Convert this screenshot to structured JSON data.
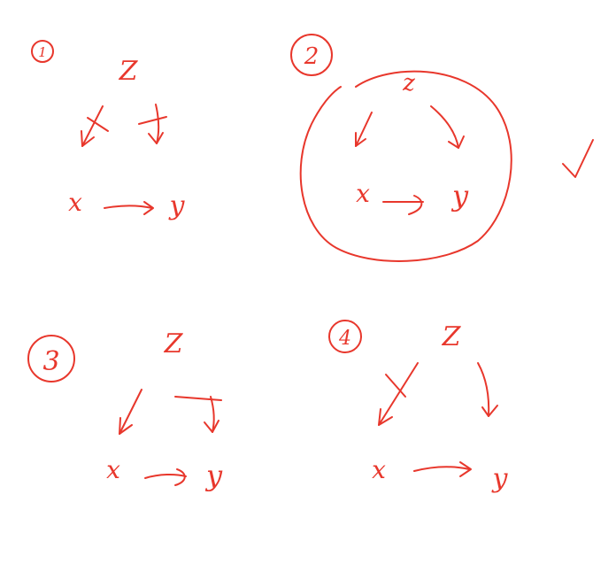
{
  "ink_color": "#e8372c",
  "diagrams": [
    {
      "number": "1",
      "nodes": {
        "z": "Z",
        "x": "x",
        "y": "y"
      },
      "edges": [
        "z->x (crossed out)",
        "z->y (crossed out)",
        "x->y"
      ],
      "marked_correct": false
    },
    {
      "number": "2",
      "nodes": {
        "z": "z",
        "x": "x",
        "y": "y"
      },
      "edges": [
        "z->x",
        "z->y",
        "x->y"
      ],
      "circled": true,
      "marked_correct": true
    },
    {
      "number": "3",
      "nodes": {
        "z": "Z",
        "x": "x",
        "y": "y"
      },
      "edges": [
        "z->x",
        "z->y (crossed out)",
        "x->y"
      ],
      "marked_correct": false
    },
    {
      "number": "4",
      "nodes": {
        "z": "Z",
        "x": "x",
        "y": "y"
      },
      "edges": [
        "z->x (crossed out)",
        "z->y",
        "x->y"
      ],
      "marked_correct": false
    }
  ],
  "check_mark_icon": "check-icon"
}
